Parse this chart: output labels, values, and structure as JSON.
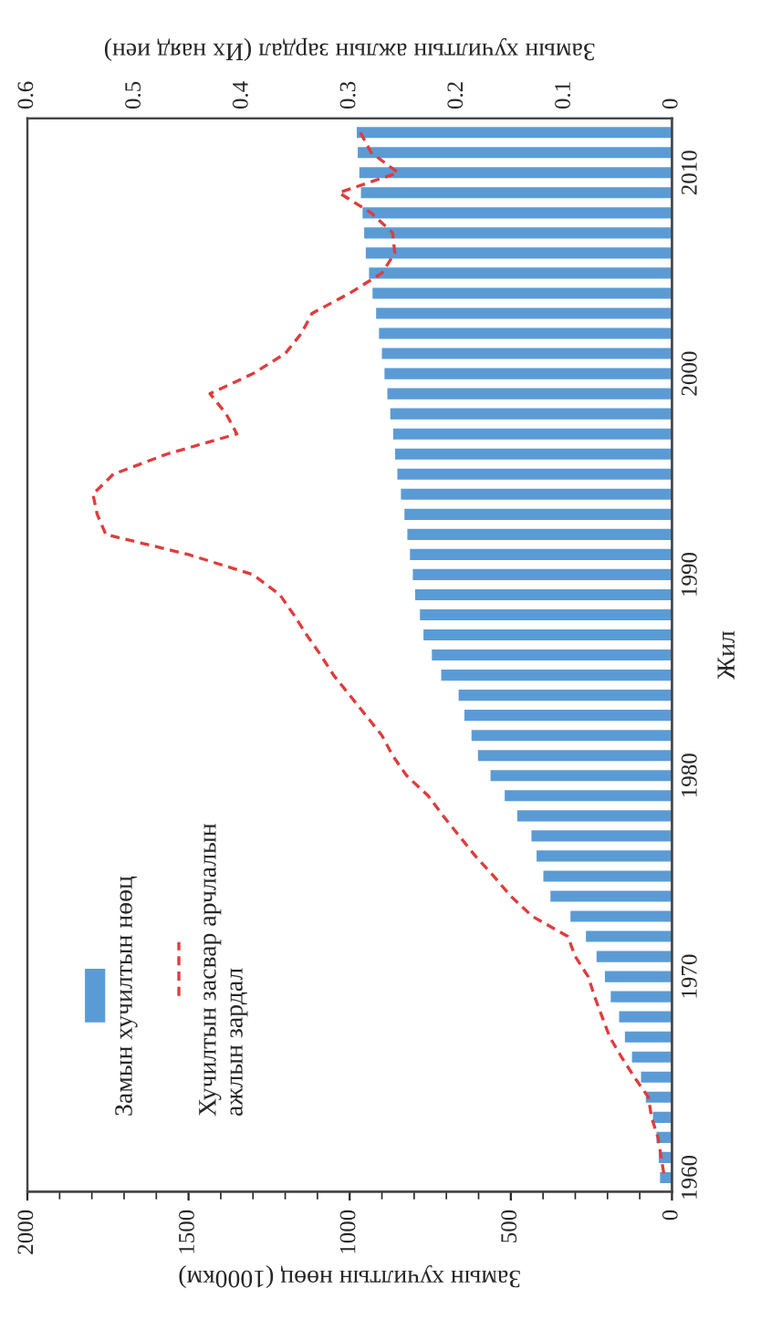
{
  "chart_data": {
    "type": "bar",
    "orientation": "horizontal",
    "categories": [
      null,
      null,
      "2010",
      null,
      null,
      null,
      null,
      null,
      null,
      null,
      null,
      null,
      "2000",
      null,
      null,
      null,
      null,
      null,
      null,
      null,
      null,
      null,
      "1990",
      null,
      null,
      null,
      null,
      null,
      null,
      null,
      null,
      null,
      "1980",
      null,
      null,
      null,
      null,
      null,
      null,
      null,
      null,
      null,
      "1970",
      null,
      null,
      null,
      null,
      null,
      null,
      null,
      null,
      null,
      "1960"
    ],
    "series": [
      {
        "name": "Замын хучилтын нөөц",
        "color": "#5b9bd5",
        "values": [
          978,
          975,
          970,
          965,
          960,
          955,
          950,
          940,
          929,
          918,
          909,
          900,
          892,
          883,
          874,
          865,
          859,
          852,
          841,
          830,
          821,
          813,
          804,
          797,
          782,
          771,
          745,
          716,
          662,
          644,
          622,
          602,
          563,
          519,
          480,
          436,
          420,
          399,
          377,
          315,
          267,
          234,
          208,
          190,
          164,
          146,
          124,
          96,
          81,
          59,
          48,
          41,
          37
        ]
      },
      {
        "name": "Хучилтын засвар арчлалын\nажлын зардал",
        "type": "line",
        "axis": "x2",
        "line_style": "dashed",
        "color": "#e03c3c",
        "values": [
          0.29,
          0.28,
          0.255,
          0.31,
          0.28,
          0.26,
          0.258,
          0.27,
          0.3,
          0.335,
          0.345,
          0.36,
          0.39,
          0.43,
          0.415,
          0.405,
          0.47,
          0.52,
          0.539,
          0.535,
          0.527,
          0.45,
          0.39,
          0.365,
          0.352,
          0.34,
          0.327,
          0.315,
          0.3,
          0.285,
          0.27,
          0.26,
          0.247,
          0.227,
          0.213,
          0.198,
          0.183,
          0.166,
          0.15,
          0.13,
          0.097,
          0.09,
          0.078,
          0.072,
          0.065,
          0.058,
          0.047,
          0.035,
          0.022,
          0.019,
          0.013,
          0.01,
          0.007
        ]
      }
    ],
    "xlim": [
      2000,
      0
    ],
    "xticks": [
      2000,
      1500,
      1000,
      500,
      0
    ],
    "x2lim": [
      0.6,
      0
    ],
    "x2ticks": [
      0.6,
      0.5,
      0.4,
      0.3,
      0.2,
      0.1,
      0
    ],
    "xlabel": "Замын хучилтын нөөц (1000км)",
    "x2label": "Замын хучилтын ажлын зардал (Их наяд иен)",
    "ylabel": "Жил",
    "legend": "left"
  }
}
